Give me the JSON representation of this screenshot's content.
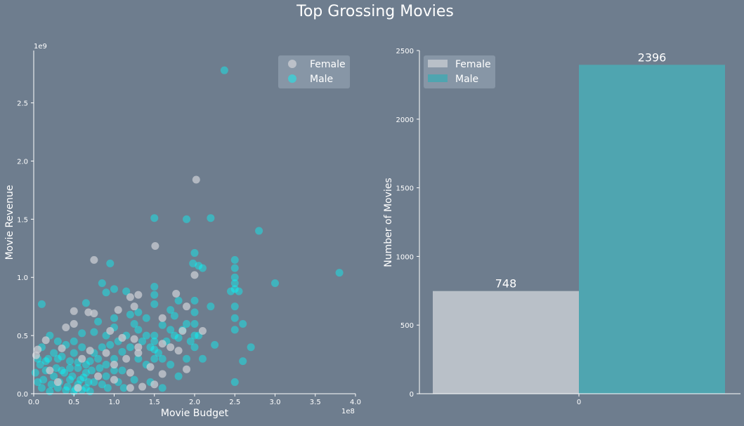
{
  "title": "Top Grossing Movies",
  "colors": {
    "background": "#6e7d8e",
    "female": "#c9ccd2",
    "male": "#00ffff",
    "male_bar": "#4fa5b0",
    "female_bar": "#b9c0c8",
    "legend_bg": "#8a99a8"
  },
  "chart_data": [
    {
      "type": "scatter",
      "xlabel": "Movie Budget",
      "ylabel": "Movie Revenue",
      "x_offset_label": "1e8",
      "y_offset_label": "1e9",
      "xlim": [
        0,
        4.0
      ],
      "ylim": [
        0,
        2.95
      ],
      "x_ticks": [
        "0.0",
        "0.5",
        "1.0",
        "1.5",
        "2.0",
        "2.5",
        "3.0",
        "3.5",
        "4.0"
      ],
      "y_ticks": [
        "0.0",
        "0.5",
        "1.0",
        "1.5",
        "2.0",
        "2.5"
      ],
      "legend": {
        "position": "top-right",
        "entries": [
          "Female",
          "Male"
        ]
      },
      "series": [
        {
          "name": "Female",
          "color": "#c9ccd2",
          "points": [
            [
              2.02,
              1.84
            ],
            [
              1.51,
              1.27
            ],
            [
              0.75,
              1.15
            ],
            [
              2.0,
              1.02
            ],
            [
              1.3,
              0.85
            ],
            [
              1.77,
              0.86
            ],
            [
              1.2,
              0.83
            ],
            [
              1.9,
              0.75
            ],
            [
              1.25,
              0.75
            ],
            [
              1.05,
              0.72
            ],
            [
              0.5,
              0.71
            ],
            [
              0.68,
              0.7
            ],
            [
              0.75,
              0.69
            ],
            [
              1.6,
              0.65
            ],
            [
              0.5,
              0.6
            ],
            [
              0.4,
              0.57
            ],
            [
              2.1,
              0.54
            ],
            [
              1.85,
              0.54
            ],
            [
              0.95,
              0.54
            ],
            [
              1.25,
              0.47
            ],
            [
              0.15,
              0.46
            ],
            [
              1.1,
              0.48
            ],
            [
              1.6,
              0.43
            ],
            [
              1.3,
              0.4
            ],
            [
              1.7,
              0.4
            ],
            [
              0.35,
              0.39
            ],
            [
              0.05,
              0.38
            ],
            [
              0.7,
              0.37
            ],
            [
              1.8,
              0.37
            ],
            [
              0.9,
              0.35
            ],
            [
              1.3,
              0.35
            ],
            [
              0.03,
              0.33
            ],
            [
              1.15,
              0.3
            ],
            [
              0.6,
              0.3
            ],
            [
              1.0,
              0.25
            ],
            [
              1.45,
              0.23
            ],
            [
              1.9,
              0.21
            ],
            [
              0.2,
              0.2
            ],
            [
              1.2,
              0.18
            ],
            [
              1.6,
              0.17
            ],
            [
              0.8,
              0.15
            ],
            [
              1.0,
              0.12
            ],
            [
              0.3,
              0.1
            ],
            [
              1.5,
              0.08
            ],
            [
              1.35,
              0.06
            ],
            [
              1.2,
              0.05
            ],
            [
              0.55,
              0.05
            ]
          ]
        },
        {
          "name": "Male",
          "color": "#00ffff",
          "points": [
            [
              2.37,
              2.78
            ],
            [
              1.5,
              1.51
            ],
            [
              2.2,
              1.51
            ],
            [
              1.9,
              1.5
            ],
            [
              2.8,
              1.4
            ],
            [
              0.95,
              1.12
            ],
            [
              1.98,
              1.12
            ],
            [
              2.05,
              1.1
            ],
            [
              2.1,
              1.08
            ],
            [
              3.8,
              1.04
            ],
            [
              2.5,
              1.15
            ],
            [
              2.5,
              1.08
            ],
            [
              2.5,
              1.0
            ],
            [
              2.5,
              0.95
            ],
            [
              2.5,
              0.9
            ],
            [
              3.0,
              0.95
            ],
            [
              2.45,
              0.88
            ],
            [
              2.55,
              0.88
            ],
            [
              2.0,
              1.21
            ],
            [
              0.1,
              0.77
            ],
            [
              0.65,
              0.78
            ],
            [
              0.85,
              0.95
            ],
            [
              0.9,
              0.87
            ],
            [
              1.15,
              0.88
            ],
            [
              1.0,
              0.9
            ],
            [
              1.5,
              0.92
            ],
            [
              1.5,
              0.85
            ],
            [
              1.5,
              0.77
            ],
            [
              1.8,
              0.8
            ],
            [
              2.0,
              0.8
            ],
            [
              2.0,
              0.7
            ],
            [
              2.0,
              0.6
            ],
            [
              2.2,
              0.75
            ],
            [
              2.5,
              0.75
            ],
            [
              2.5,
              0.65
            ],
            [
              2.5,
              0.55
            ],
            [
              2.6,
              0.6
            ],
            [
              2.7,
              0.4
            ],
            [
              2.5,
              0.1
            ],
            [
              2.6,
              0.28
            ],
            [
              2.1,
              0.3
            ],
            [
              2.25,
              0.42
            ],
            [
              1.2,
              0.68
            ],
            [
              1.3,
              0.7
            ],
            [
              1.4,
              0.65
            ],
            [
              1.7,
              0.72
            ],
            [
              1.75,
              0.67
            ],
            [
              1.6,
              0.59
            ],
            [
              1.5,
              0.5
            ],
            [
              1.5,
              0.45
            ],
            [
              1.5,
              0.38
            ],
            [
              1.5,
              0.3
            ],
            [
              1.3,
              0.55
            ],
            [
              1.4,
              0.5
            ],
            [
              1.0,
              0.65
            ],
            [
              0.8,
              0.62
            ],
            [
              1.0,
              0.57
            ],
            [
              0.9,
              0.5
            ],
            [
              0.75,
              0.53
            ],
            [
              0.6,
              0.52
            ],
            [
              0.5,
              0.45
            ],
            [
              1.7,
              0.55
            ],
            [
              1.8,
              0.48
            ],
            [
              1.9,
              0.6
            ],
            [
              2.0,
              0.5
            ],
            [
              2.0,
              0.4
            ],
            [
              1.9,
              0.3
            ],
            [
              1.7,
              0.25
            ],
            [
              1.6,
              0.3
            ],
            [
              1.4,
              0.25
            ],
            [
              1.3,
              0.3
            ],
            [
              1.2,
              0.4
            ],
            [
              1.1,
              0.36
            ],
            [
              1.1,
              0.2
            ],
            [
              1.0,
              0.3
            ],
            [
              1.0,
              0.2
            ],
            [
              0.9,
              0.25
            ],
            [
              0.9,
              0.15
            ],
            [
              0.8,
              0.3
            ],
            [
              0.7,
              0.28
            ],
            [
              0.6,
              0.4
            ],
            [
              0.5,
              0.35
            ],
            [
              0.4,
              0.42
            ],
            [
              0.3,
              0.45
            ],
            [
              0.2,
              0.5
            ],
            [
              0.1,
              0.4
            ],
            [
              0.05,
              0.3
            ],
            [
              0.3,
              0.3
            ],
            [
              0.45,
              0.28
            ],
            [
              0.55,
              0.22
            ],
            [
              0.65,
              0.18
            ],
            [
              0.75,
              0.1
            ],
            [
              0.85,
              0.08
            ],
            [
              1.05,
              0.1
            ],
            [
              1.25,
              0.12
            ],
            [
              1.45,
              0.1
            ],
            [
              1.6,
              0.05
            ],
            [
              1.8,
              0.15
            ],
            [
              0.15,
              0.2
            ],
            [
              0.25,
              0.15
            ],
            [
              0.35,
              0.2
            ],
            [
              0.45,
              0.12
            ],
            [
              0.55,
              0.08
            ],
            [
              0.65,
              0.05
            ],
            [
              0.05,
              0.1
            ],
            [
              0.1,
              0.05
            ],
            [
              0.2,
              0.02
            ],
            [
              0.3,
              0.05
            ],
            [
              0.4,
              0.03
            ],
            [
              0.5,
              0.02
            ],
            [
              0.6,
              0.03
            ],
            [
              0.7,
              0.02
            ],
            [
              0.02,
              0.18
            ],
            [
              0.08,
              0.25
            ],
            [
              0.18,
              0.3
            ],
            [
              0.28,
              0.22
            ],
            [
              0.38,
              0.18
            ],
            [
              0.48,
              0.15
            ],
            [
              0.58,
              0.12
            ],
            [
              0.68,
              0.1
            ],
            [
              0.12,
              0.12
            ],
            [
              0.22,
              0.08
            ],
            [
              0.32,
              0.1
            ],
            [
              0.42,
              0.06
            ],
            [
              0.52,
              0.04
            ],
            [
              0.62,
              0.14
            ],
            [
              0.72,
              0.2
            ],
            [
              0.82,
              0.22
            ],
            [
              0.92,
              0.05
            ],
            [
              1.12,
              0.05
            ],
            [
              0.25,
              0.35
            ],
            [
              0.35,
              0.32
            ],
            [
              0.15,
              0.28
            ],
            [
              0.45,
              0.22
            ],
            [
              0.55,
              0.27
            ],
            [
              0.65,
              0.25
            ],
            [
              0.75,
              0.35
            ],
            [
              0.85,
              0.4
            ],
            [
              0.95,
              0.42
            ],
            [
              1.05,
              0.45
            ],
            [
              1.15,
              0.5
            ],
            [
              1.25,
              0.6
            ],
            [
              1.35,
              0.45
            ],
            [
              1.45,
              0.4
            ],
            [
              1.55,
              0.35
            ],
            [
              1.65,
              0.45
            ],
            [
              1.75,
              0.5
            ],
            [
              1.85,
              0.55
            ],
            [
              1.95,
              0.45
            ],
            [
              2.05,
              0.5
            ]
          ]
        }
      ]
    },
    {
      "type": "bar",
      "xlabel": "",
      "ylabel": "Number of Movies",
      "ylim": [
        0,
        2500
      ],
      "y_ticks": [
        "0",
        "500",
        "1000",
        "1500",
        "2000",
        "2500"
      ],
      "categories": [
        "0"
      ],
      "legend": {
        "position": "top-left",
        "entries": [
          "Female",
          "Male"
        ]
      },
      "series": [
        {
          "name": "Female",
          "values": [
            748
          ],
          "label": "748",
          "color": "#b9c0c8"
        },
        {
          "name": "Male",
          "values": [
            2396
          ],
          "label": "2396",
          "color": "#4fa5b0"
        }
      ]
    }
  ]
}
